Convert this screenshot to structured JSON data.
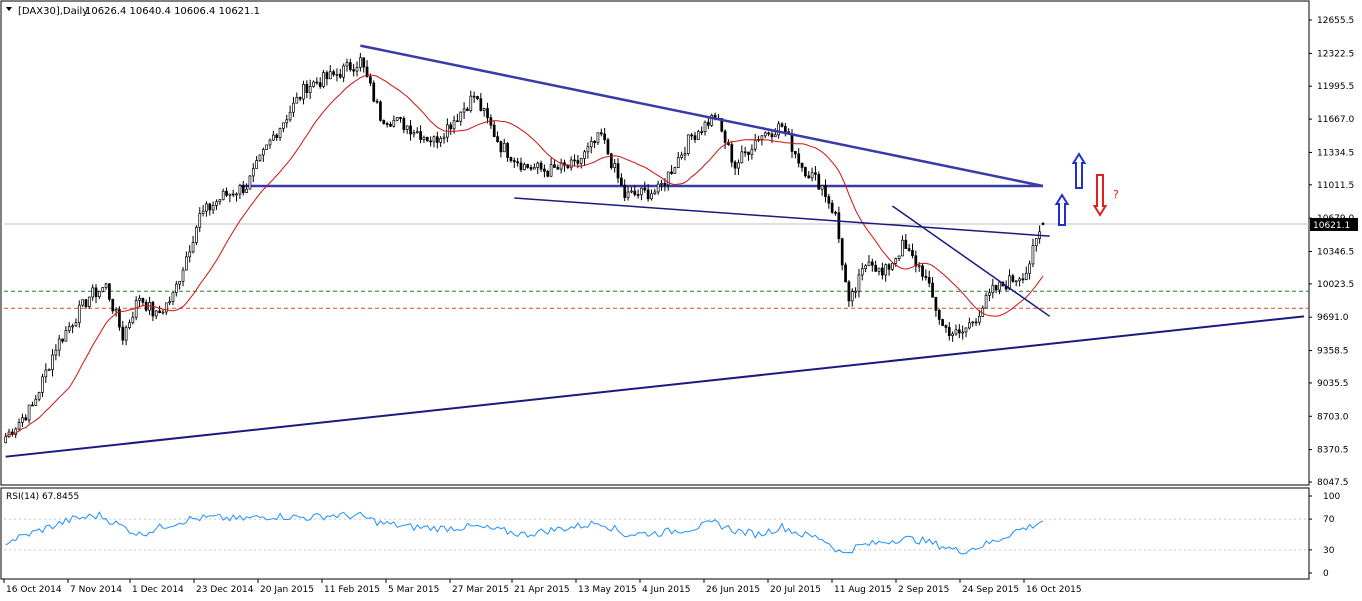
{
  "header": {
    "symbol_label": "[DAX30],Daily",
    "ohlc_label": "10626.4 10640.4 10606.4 10621.1",
    "price_tag": "10621.1"
  },
  "colors": {
    "bull_candle": "#000000",
    "bear_candle": "#000000",
    "ma_line": "#d01010",
    "trend_lines": "#3a3aa8",
    "support_line": "#1a1a80",
    "level_green": "#208020",
    "level_orange": "#d05020",
    "rsi_line": "#1e90ff",
    "arrow_up": "#2030d0",
    "arrow_down": "#e02020"
  },
  "chart_data": [
    {
      "type": "candlestick",
      "instrument": "[DAX30]",
      "timeframe": "Daily",
      "last": {
        "open": 10626.4,
        "high": 10640.4,
        "low": 10606.4,
        "close": 10621.1
      },
      "y_ticks": [
        "12655.5",
        "12322.5",
        "11995.5",
        "11667.0",
        "11334.5",
        "11011.5",
        "10679.0",
        "10346.5",
        "10023.5",
        "9691.0",
        "9358.5",
        "9035.5",
        "8703.0",
        "8370.5",
        "8047.5"
      ],
      "ylim": [
        8047.5,
        12655.5
      ],
      "x_ticks": [
        "16 Oct 2014",
        "7 Nov 2014",
        "1 Dec 2014",
        "23 Dec 2014",
        "20 Jan 2015",
        "11 Feb 2015",
        "5 Mar 2015",
        "27 Mar 2015",
        "21 Apr 2015",
        "13 May 2015",
        "4 Jun 2015",
        "26 Jun 2015",
        "20 Jul 2015",
        "11 Aug 2015",
        "2 Sep 2015",
        "24 Sep 2015",
        "16 Oct 2015"
      ],
      "price_path": [
        [
          0,
          8500
        ],
        [
          8,
          8800
        ],
        [
          15,
          9400
        ],
        [
          25,
          9900
        ],
        [
          30,
          10000
        ],
        [
          35,
          9500
        ],
        [
          40,
          9900
        ],
        [
          45,
          9700
        ],
        [
          50,
          9900
        ],
        [
          58,
          10700
        ],
        [
          65,
          10900
        ],
        [
          72,
          11000
        ],
        [
          80,
          11500
        ],
        [
          90,
          12000
        ],
        [
          98,
          12100
        ],
        [
          106,
          12250
        ],
        [
          112,
          11700
        ],
        [
          120,
          11600
        ],
        [
          128,
          11450
        ],
        [
          135,
          11700
        ],
        [
          140,
          11900
        ],
        [
          148,
          11400
        ],
        [
          155,
          11200
        ],
        [
          162,
          11150
        ],
        [
          170,
          11200
        ],
        [
          178,
          11500
        ],
        [
          185,
          10900
        ],
        [
          195,
          10950
        ],
        [
          205,
          11500
        ],
        [
          212,
          11700
        ],
        [
          218,
          11200
        ],
        [
          225,
          11500
        ],
        [
          232,
          11600
        ],
        [
          238,
          11200
        ],
        [
          244,
          11000
        ],
        [
          248,
          10700
        ],
        [
          252,
          9800
        ],
        [
          258,
          10300
        ],
        [
          262,
          10100
        ],
        [
          268,
          10400
        ],
        [
          274,
          10150
        ],
        [
          280,
          9600
        ],
        [
          285,
          9500
        ],
        [
          290,
          9700
        ],
        [
          295,
          9950
        ],
        [
          300,
          10050
        ],
        [
          305,
          10150
        ],
        [
          310,
          10621
        ]
      ],
      "ma_period": 20,
      "horizontal_levels": [
        11000,
        9950,
        9780
      ],
      "trend_lines": [
        {
          "name": "resistance",
          "from": [
            106,
            12400
          ],
          "to": [
            310,
            11000
          ]
        },
        {
          "name": "support",
          "from": [
            0,
            8300
          ],
          "to": [
            388,
            9700
          ]
        },
        {
          "name": "neckline",
          "from": [
            152,
            10880
          ],
          "to": [
            312,
            10500
          ]
        },
        {
          "name": "falling",
          "from": [
            265,
            10800
          ],
          "to": [
            312,
            9700
          ]
        }
      ],
      "annotations": [
        {
          "text": "?",
          "color": "#e02020"
        }
      ],
      "last_bar_index": 310,
      "total_slots": 390
    },
    {
      "type": "line",
      "indicator": "RSI",
      "label": "RSI(14) 67.8455",
      "value": 67.8455,
      "y_ticks": [
        "100",
        "70",
        "30",
        "0"
      ],
      "ylim": [
        0,
        100
      ],
      "levels": [
        70,
        30
      ],
      "rsi_path": [
        [
          0,
          40
        ],
        [
          10,
          55
        ],
        [
          20,
          70
        ],
        [
          28,
          75
        ],
        [
          35,
          60
        ],
        [
          40,
          50
        ],
        [
          48,
          62
        ],
        [
          55,
          70
        ],
        [
          62,
          72
        ],
        [
          70,
          70
        ],
        [
          80,
          74
        ],
        [
          90,
          72
        ],
        [
          98,
          75
        ],
        [
          106,
          74
        ],
        [
          112,
          65
        ],
        [
          120,
          60
        ],
        [
          130,
          58
        ],
        [
          140,
          60
        ],
        [
          148,
          55
        ],
        [
          155,
          50
        ],
        [
          162,
          55
        ],
        [
          170,
          60
        ],
        [
          178,
          66
        ],
        [
          185,
          50
        ],
        [
          195,
          52
        ],
        [
          205,
          58
        ],
        [
          212,
          65
        ],
        [
          218,
          55
        ],
        [
          225,
          50
        ],
        [
          232,
          60
        ],
        [
          238,
          50
        ],
        [
          244,
          45
        ],
        [
          250,
          25
        ],
        [
          255,
          35
        ],
        [
          262,
          40
        ],
        [
          268,
          45
        ],
        [
          274,
          42
        ],
        [
          280,
          35
        ],
        [
          285,
          28
        ],
        [
          290,
          33
        ],
        [
          296,
          42
        ],
        [
          302,
          55
        ],
        [
          306,
          60
        ],
        [
          310,
          68
        ]
      ]
    }
  ]
}
